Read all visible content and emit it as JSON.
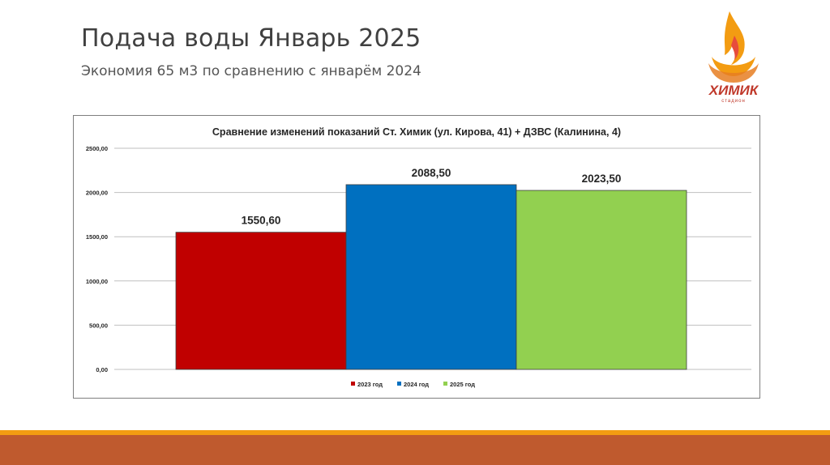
{
  "slide": {
    "title": "Подача воды Январь 2025",
    "subtitle": "Экономия 65 м3 по сравнению с январём 2024"
  },
  "logo": {
    "name": "ХИМИК",
    "sub": "стадион"
  },
  "colors": {
    "accent_band": "#f39c12",
    "footer_band": "#bf5a2e",
    "series_2023": "#c00000",
    "series_2024": "#0070c0",
    "series_2025": "#92d050"
  },
  "chart_data": {
    "type": "bar",
    "title": "Сравнение изменений показаний Ст. Химик (ул. Кирова, 41) + ДЗВС (Калинина, 4)",
    "xlabel": "",
    "ylabel": "",
    "ylim": [
      0,
      2500
    ],
    "yticks": [
      "0,00",
      "500,00",
      "1000,00",
      "1500,00",
      "2000,00",
      "2500,00"
    ],
    "ytick_values": [
      0,
      500,
      1000,
      1500,
      2000,
      2500
    ],
    "grid": true,
    "legend": "bottom",
    "series": [
      {
        "name": "2023 год",
        "value": 1550.6,
        "label": "1550,60",
        "color": "#c00000"
      },
      {
        "name": "2024 год",
        "value": 2088.5,
        "label": "2088,50",
        "color": "#0070c0"
      },
      {
        "name": "2025 год",
        "value": 2023.5,
        "label": "2023,50",
        "color": "#92d050"
      }
    ]
  }
}
